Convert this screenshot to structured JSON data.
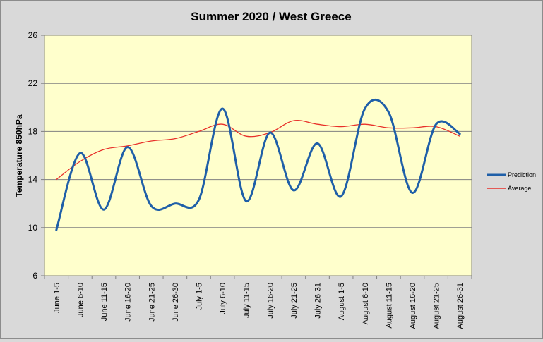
{
  "chart_data": {
    "type": "line",
    "title": "Summer 2020 / West Greece",
    "xlabel": "",
    "ylabel": "Temperature 850hPa",
    "ylim": [
      6,
      26
    ],
    "yticks": [
      6,
      10,
      14,
      18,
      22,
      26
    ],
    "grid": true,
    "legend_position": "right",
    "categories": [
      "June 1-5",
      "June 6-10",
      "June 11-15",
      "June 16-20",
      "June 21-25",
      "June 26-30",
      "July 1-5",
      "July 6-10",
      "July 11-15",
      "July 16-20",
      "July 21-25",
      "July 26-31",
      "August 1-5",
      "August 6-10",
      "August 11-15",
      "August 16-20",
      "August 21-25",
      "August 26-31"
    ],
    "series": [
      {
        "name": "Prediction",
        "color": "#1f5fa8",
        "values": [
          9.8,
          16.2,
          11.5,
          16.7,
          11.8,
          12.0,
          12.3,
          19.9,
          12.2,
          17.9,
          13.1,
          17.0,
          12.6,
          19.9,
          19.6,
          12.9,
          18.6,
          17.8
        ]
      },
      {
        "name": "Average",
        "color": "#e8302a",
        "values": [
          14.0,
          15.5,
          16.5,
          16.8,
          17.2,
          17.4,
          18.0,
          18.6,
          17.6,
          17.9,
          18.9,
          18.6,
          18.4,
          18.6,
          18.3,
          18.3,
          18.4,
          17.6
        ]
      }
    ],
    "plot_background": "#ffffcc",
    "frame_background": "#d9d9d9"
  }
}
